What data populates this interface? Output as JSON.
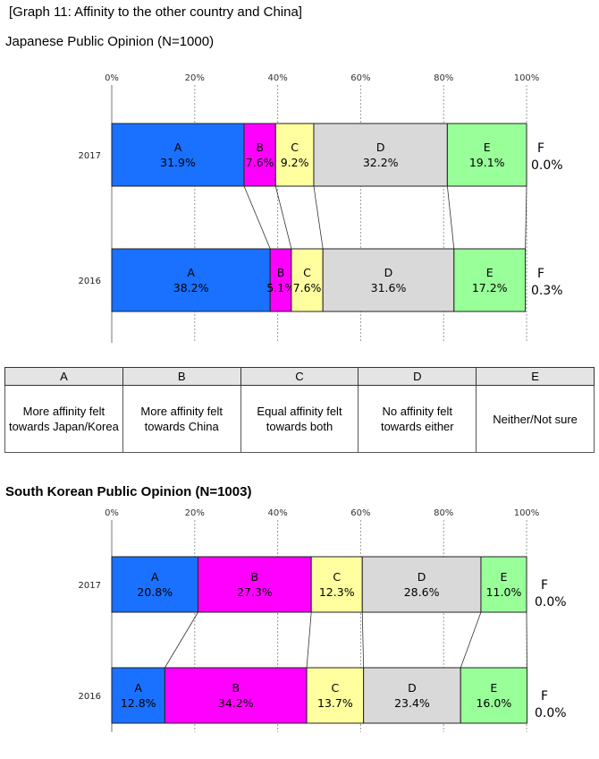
{
  "graph_title": "[Graph 11: Affinity to the other country and China]",
  "legend_table": {
    "columns": [
      {
        "key": "A",
        "text": "More affinity felt towards Japan/Korea"
      },
      {
        "key": "B",
        "text": "More affinity felt towards China"
      },
      {
        "key": "C",
        "text": "Equal affinity felt towards both"
      },
      {
        "key": "D",
        "text": "No affinity felt towards either"
      },
      {
        "key": "E",
        "text": "Neither/Not sure"
      }
    ]
  },
  "chart_data": [
    {
      "type": "bar",
      "stacked": true,
      "orientation": "horizontal",
      "title": "Japanese Public Opinion (N=1000)",
      "x_ticks": [
        "0%",
        "20%",
        "40%",
        "60%",
        "80%",
        "100%"
      ],
      "xlim": [
        0,
        100
      ],
      "grid": true,
      "categories": [
        "2017",
        "2016"
      ],
      "series": [
        {
          "name": "A",
          "values": [
            31.9,
            38.2
          ],
          "labels": [
            "31.9%",
            "38.2%"
          ],
          "color": "#1a70ff"
        },
        {
          "name": "B",
          "values": [
            7.6,
            5.1
          ],
          "labels": [
            "7.6%",
            "5.1%"
          ],
          "color": "#ff00ff"
        },
        {
          "name": "C",
          "values": [
            9.2,
            7.6
          ],
          "labels": [
            "9.2%",
            "7.6%"
          ],
          "color": "#ffffa0"
        },
        {
          "name": "D",
          "values": [
            32.2,
            31.6
          ],
          "labels": [
            "32.2%",
            "31.6%"
          ],
          "color": "#d9d9d9"
        },
        {
          "name": "E",
          "values": [
            19.1,
            17.2
          ],
          "labels": [
            "19.1%",
            "17.2%"
          ],
          "color": "#99ff99"
        },
        {
          "name": "F",
          "values": [
            0.0,
            0.3
          ],
          "labels": [
            "0.0%",
            "0.3%"
          ],
          "color": "#ffffff"
        }
      ]
    },
    {
      "type": "bar",
      "stacked": true,
      "orientation": "horizontal",
      "title": "South Korean Public Opinion (N=1003)",
      "x_ticks": [
        "0%",
        "20%",
        "40%",
        "60%",
        "80%",
        "100%"
      ],
      "xlim": [
        0,
        100
      ],
      "grid": true,
      "categories": [
        "2017",
        "2016"
      ],
      "series": [
        {
          "name": "A",
          "values": [
            20.8,
            12.8
          ],
          "labels": [
            "20.8%",
            "12.8%"
          ],
          "color": "#1a70ff"
        },
        {
          "name": "B",
          "values": [
            27.3,
            34.2
          ],
          "labels": [
            "27.3%",
            "34.2%"
          ],
          "color": "#ff00ff"
        },
        {
          "name": "C",
          "values": [
            12.3,
            13.7
          ],
          "labels": [
            "12.3%",
            "13.7%"
          ],
          "color": "#ffffa0"
        },
        {
          "name": "D",
          "values": [
            28.6,
            23.4
          ],
          "labels": [
            "28.6%",
            "23.4%"
          ],
          "color": "#d9d9d9"
        },
        {
          "name": "E",
          "values": [
            11.0,
            16.0
          ],
          "labels": [
            "11.0%",
            "16.0%"
          ],
          "color": "#99ff99"
        },
        {
          "name": "F",
          "values": [
            0.0,
            0.0
          ],
          "labels": [
            "0.0%",
            "0.0%"
          ],
          "color": "#ffffff"
        }
      ]
    }
  ]
}
